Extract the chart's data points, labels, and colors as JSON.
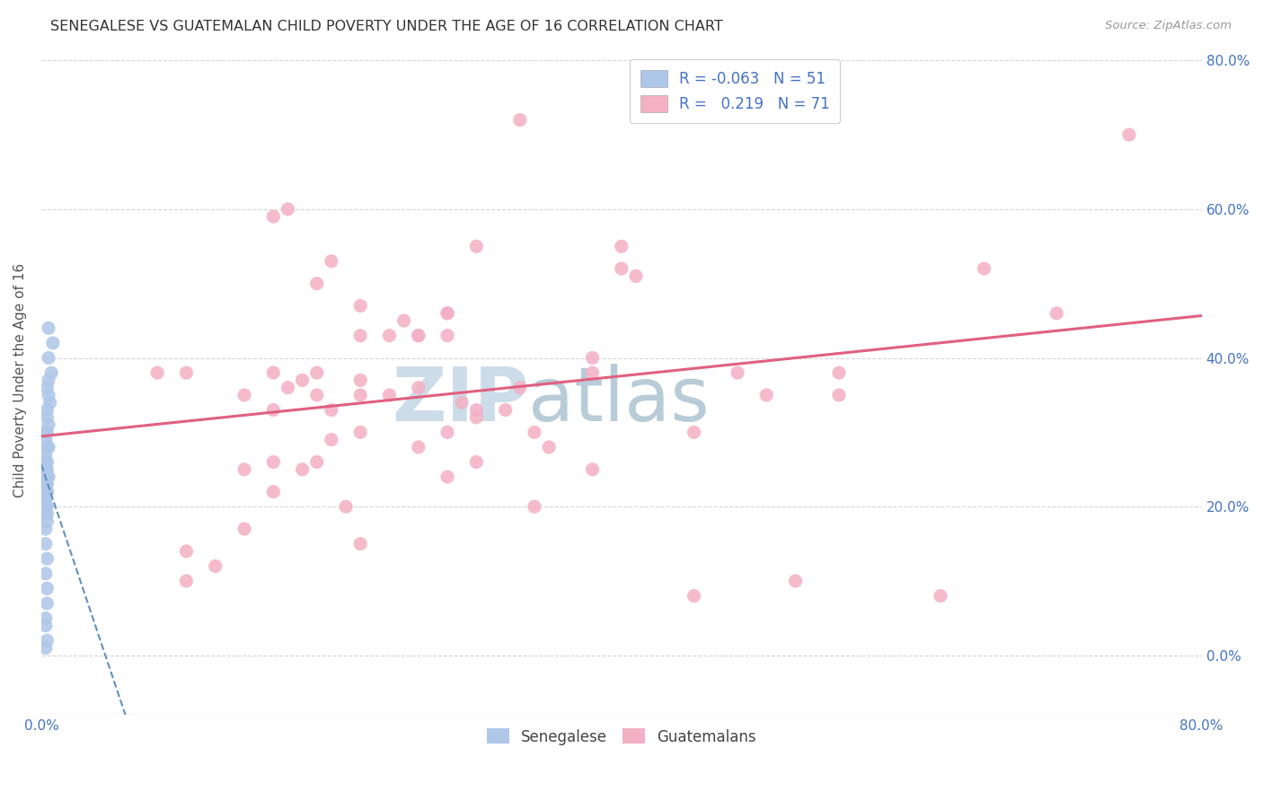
{
  "title": "SENEGALESE VS GUATEMALAN CHILD POVERTY UNDER THE AGE OF 16 CORRELATION CHART",
  "source": "Source: ZipAtlas.com",
  "ylabel": "Child Poverty Under the Age of 16",
  "x_min": 0.0,
  "x_max": 0.8,
  "y_min": -0.08,
  "y_max": 0.82,
  "background_color": "#ffffff",
  "grid_color": "#cccccc",
  "watermark_zip": "ZIP",
  "watermark_atlas": "atlas",
  "watermark_color_zip": "#c8d8e8",
  "watermark_color_atlas": "#b0c8d8",
  "senegalese_color": "#aec6e8",
  "guatemalan_color": "#f4b0c4",
  "senegalese_line_color": "#6090c0",
  "guatemalan_line_color": "#e06080",
  "r_senegalese": -0.063,
  "n_senegalese": 51,
  "r_guatemalan": 0.219,
  "n_guatemalan": 71,
  "senegalese_x": [
    0.005,
    0.008,
    0.005,
    0.007,
    0.005,
    0.004,
    0.005,
    0.006,
    0.004,
    0.004,
    0.005,
    0.003,
    0.004,
    0.003,
    0.005,
    0.004,
    0.003,
    0.004,
    0.003,
    0.003,
    0.004,
    0.003,
    0.005,
    0.003,
    0.004,
    0.003,
    0.003,
    0.004,
    0.003,
    0.004,
    0.003,
    0.004,
    0.003,
    0.003,
    0.003,
    0.003,
    0.003,
    0.004,
    0.003,
    0.004,
    0.004,
    0.003,
    0.003,
    0.004,
    0.003,
    0.004,
    0.004,
    0.003,
    0.003,
    0.004,
    0.003
  ],
  "senegalese_y": [
    0.44,
    0.42,
    0.4,
    0.38,
    0.37,
    0.36,
    0.35,
    0.34,
    0.33,
    0.32,
    0.31,
    0.3,
    0.3,
    0.29,
    0.28,
    0.28,
    0.27,
    0.26,
    0.26,
    0.25,
    0.25,
    0.25,
    0.24,
    0.24,
    0.24,
    0.23,
    0.23,
    0.23,
    0.22,
    0.22,
    0.22,
    0.22,
    0.21,
    0.21,
    0.21,
    0.2,
    0.2,
    0.2,
    0.19,
    0.19,
    0.18,
    0.17,
    0.15,
    0.13,
    0.11,
    0.09,
    0.07,
    0.05,
    0.04,
    0.02,
    0.01
  ],
  "guatemalan_x": [
    0.16,
    0.2,
    0.3,
    0.33,
    0.33,
    0.4,
    0.41,
    0.17,
    0.19,
    0.22,
    0.25,
    0.26,
    0.28,
    0.22,
    0.24,
    0.26,
    0.28,
    0.19,
    0.22,
    0.28,
    0.08,
    0.1,
    0.14,
    0.3,
    0.32,
    0.16,
    0.18,
    0.2,
    0.22,
    0.26,
    0.38,
    0.4,
    0.29,
    0.3,
    0.48,
    0.55,
    0.16,
    0.17,
    0.19,
    0.22,
    0.24,
    0.26,
    0.14,
    0.16,
    0.18,
    0.34,
    0.35,
    0.19,
    0.28,
    0.16,
    0.21,
    0.38,
    0.5,
    0.14,
    0.22,
    0.3,
    0.38,
    0.55,
    0.65,
    0.1,
    0.1,
    0.12,
    0.2,
    0.28,
    0.34,
    0.45,
    0.45,
    0.52,
    0.62,
    0.7,
    0.75
  ],
  "guatemalan_y": [
    0.59,
    0.53,
    0.55,
    0.72,
    0.36,
    0.55,
    0.51,
    0.6,
    0.5,
    0.47,
    0.45,
    0.43,
    0.46,
    0.43,
    0.43,
    0.43,
    0.46,
    0.38,
    0.37,
    0.43,
    0.38,
    0.38,
    0.35,
    0.33,
    0.33,
    0.38,
    0.37,
    0.33,
    0.3,
    0.28,
    0.4,
    0.52,
    0.34,
    0.32,
    0.38,
    0.38,
    0.33,
    0.36,
    0.35,
    0.35,
    0.35,
    0.36,
    0.25,
    0.26,
    0.25,
    0.3,
    0.28,
    0.26,
    0.24,
    0.22,
    0.2,
    0.38,
    0.35,
    0.17,
    0.15,
    0.26,
    0.25,
    0.35,
    0.52,
    0.14,
    0.1,
    0.12,
    0.29,
    0.3,
    0.2,
    0.3,
    0.08,
    0.1,
    0.08,
    0.46,
    0.7
  ]
}
